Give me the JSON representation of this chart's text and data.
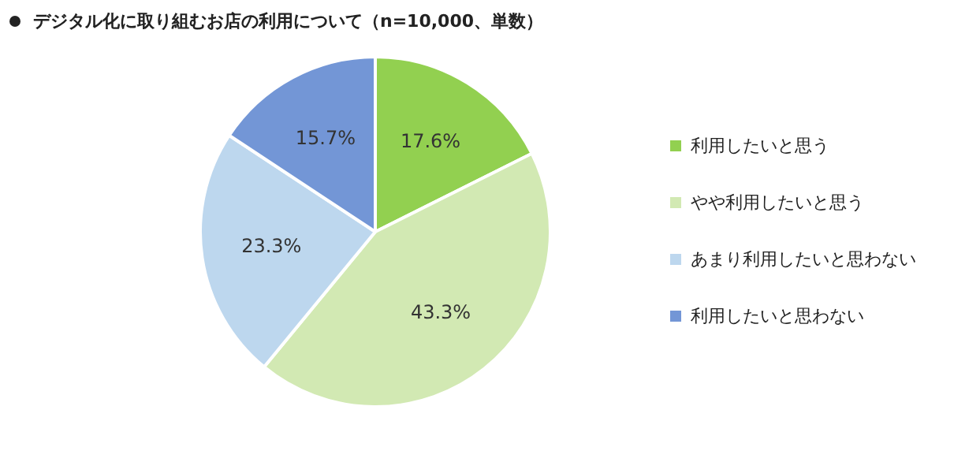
{
  "chart_data": {
    "type": "pie",
    "title": "デジタル化に取り組むお店の利用について（n=10,000、単数）",
    "categories": [
      "利用したいと思う",
      "やや利用したいと思う",
      "あまり利用したいと思わない",
      "利用したいと思わない"
    ],
    "values": [
      17.6,
      43.3,
      23.3,
      15.7
    ],
    "colors": [
      "#92d050",
      "#d2e9b3",
      "#bdd7ee",
      "#7396d6"
    ],
    "value_labels": [
      "17.6%",
      "43.3%",
      "23.3%",
      "15.7%"
    ],
    "legend": "right"
  }
}
